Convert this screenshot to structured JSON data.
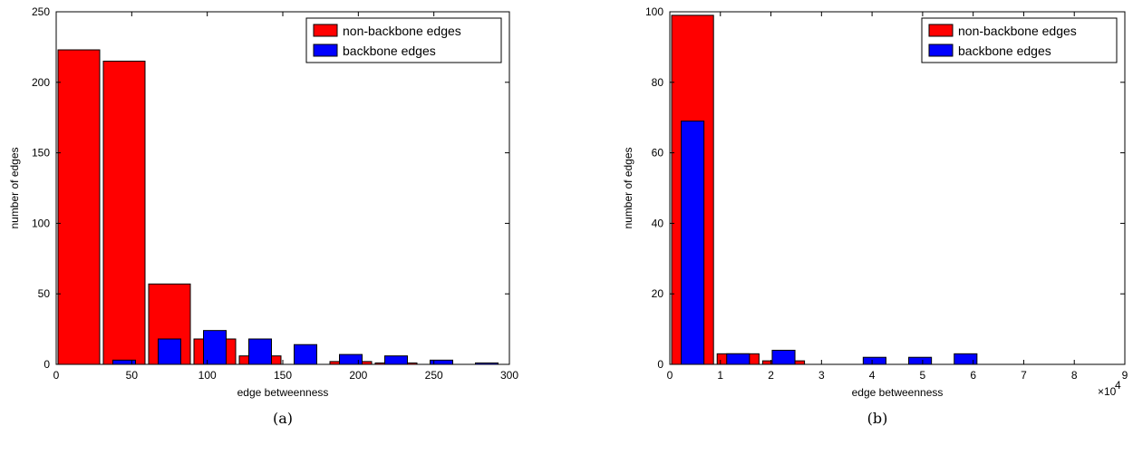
{
  "colors": {
    "non_backbone": "#ff0000",
    "backbone": "#0000ff",
    "axis": "#000000"
  },
  "chart_data": [
    {
      "type": "bar",
      "panel_label": "(a)",
      "xlabel": "edge betweenness",
      "ylabel": "number of edges",
      "xlim": [
        0,
        300
      ],
      "ylim": [
        0,
        250
      ],
      "xticks": [
        0,
        50,
        100,
        150,
        200,
        250,
        300
      ],
      "yticks": [
        0,
        50,
        100,
        150,
        200,
        250
      ],
      "x_multiplier": "",
      "bin_width": 30,
      "x": [
        15,
        45,
        75,
        105,
        135,
        165,
        195,
        225,
        255,
        285
      ],
      "legend_position": "top-right",
      "series": [
        {
          "name": "non-backbone edges",
          "color": "#ff0000",
          "values": [
            223,
            215,
            57,
            18,
            6,
            0,
            2,
            1,
            0,
            0
          ]
        },
        {
          "name": "backbone edges",
          "color": "#0000ff",
          "values": [
            0,
            3,
            18,
            24,
            18,
            14,
            7,
            6,
            3,
            1
          ]
        }
      ]
    },
    {
      "type": "bar",
      "panel_label": "(b)",
      "xlabel": "edge betweenness",
      "ylabel": "number of edges",
      "xlim": [
        0,
        9
      ],
      "ylim": [
        0,
        100
      ],
      "xticks": [
        0,
        1,
        2,
        3,
        4,
        5,
        6,
        7,
        8,
        9
      ],
      "yticks": [
        0,
        20,
        40,
        60,
        80,
        100
      ],
      "x_multiplier": "×10",
      "x_multiplier_exp": "4",
      "bin_width": 0.9,
      "x": [
        0.45,
        1.35,
        2.25,
        3.15,
        4.05,
        4.95,
        5.85,
        6.75,
        7.65,
        8.55
      ],
      "legend_position": "top-right",
      "series": [
        {
          "name": "non-backbone edges",
          "color": "#ff0000",
          "values": [
            99,
            3,
            1,
            0,
            0,
            0,
            0,
            0,
            0,
            0
          ]
        },
        {
          "name": "backbone edges",
          "color": "#0000ff",
          "values": [
            69,
            3,
            4,
            0,
            2,
            2,
            3,
            0,
            0,
            0
          ]
        }
      ]
    }
  ]
}
